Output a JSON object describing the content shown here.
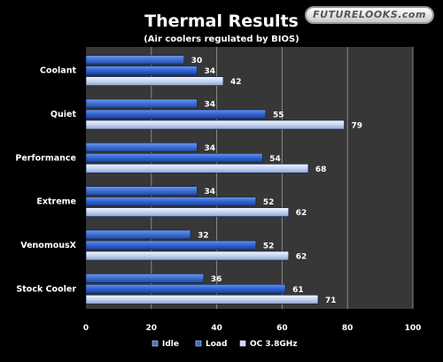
{
  "logo": {
    "text": "FUTURELOOKS.com"
  },
  "colors": {
    "idle": "#3f6fcf",
    "load": "#3368d6",
    "oc": "#c8d6f0",
    "plot_bg": "#373737",
    "grid": "#8a8a8a"
  },
  "chart_data": {
    "type": "bar",
    "orientation": "horizontal",
    "title": "Thermal Results",
    "subtitle": "(Air coolers regulated by BIOS)",
    "categories": [
      "Coolant",
      "Quiet",
      "Performance",
      "Extreme",
      "VenomousX",
      "Stock Cooler"
    ],
    "series": [
      {
        "name": "Idle",
        "values": [
          30,
          34,
          34,
          34,
          32,
          36
        ]
      },
      {
        "name": "Load",
        "values": [
          34,
          55,
          54,
          52,
          52,
          61
        ]
      },
      {
        "name": "OC 3.8GHz",
        "values": [
          42,
          79,
          68,
          62,
          62,
          71
        ]
      }
    ],
    "xlim": [
      0,
      100
    ],
    "xticks": [
      0,
      20,
      40,
      60,
      80,
      100
    ],
    "grid": true,
    "legend": "bottom",
    "data_labels": true
  }
}
